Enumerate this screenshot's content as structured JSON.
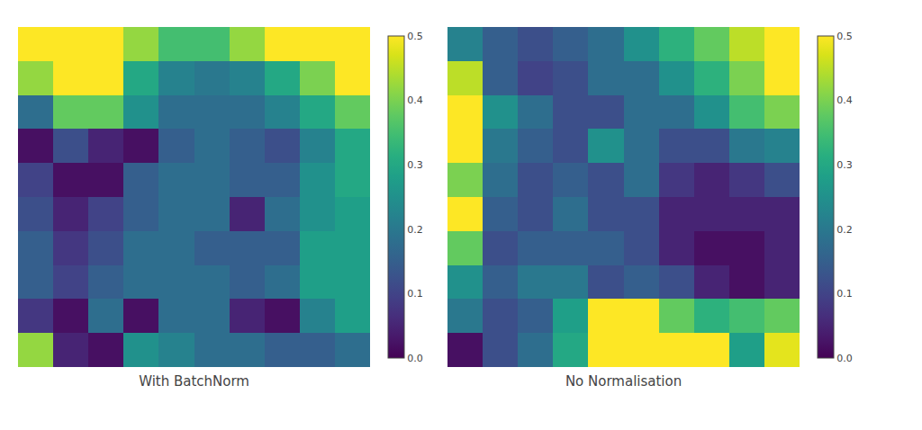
{
  "chart_data": [
    {
      "type": "heatmap",
      "xlabel": "With BatchNorm",
      "color": "Viridis",
      "zlim": [
        0.0,
        0.5
      ],
      "zticks": [
        {
          "value": 0.0,
          "label": "0.0"
        },
        0.1,
        0.2,
        0.3,
        0.4,
        0.5
      ],
      "tick_labels": false,
      "values": [
        [
          0.5,
          0.5,
          0.5,
          0.42,
          0.35,
          0.35,
          0.42,
          0.5,
          0.5,
          0.5
        ],
        [
          0.42,
          0.5,
          0.5,
          0.3,
          0.22,
          0.2,
          0.22,
          0.3,
          0.4,
          0.5
        ],
        [
          0.18,
          0.38,
          0.38,
          0.25,
          0.18,
          0.18,
          0.18,
          0.22,
          0.3,
          0.38
        ],
        [
          0.02,
          0.12,
          0.05,
          0.02,
          0.15,
          0.18,
          0.15,
          0.12,
          0.22,
          0.3
        ],
        [
          0.1,
          0.02,
          0.02,
          0.15,
          0.18,
          0.18,
          0.15,
          0.15,
          0.25,
          0.3
        ],
        [
          0.12,
          0.05,
          0.1,
          0.15,
          0.18,
          0.18,
          0.05,
          0.18,
          0.25,
          0.28
        ],
        [
          0.15,
          0.08,
          0.12,
          0.18,
          0.18,
          0.15,
          0.15,
          0.15,
          0.28,
          0.28
        ],
        [
          0.15,
          0.1,
          0.15,
          0.18,
          0.18,
          0.18,
          0.15,
          0.18,
          0.28,
          0.28
        ],
        [
          0.08,
          0.02,
          0.18,
          0.02,
          0.18,
          0.18,
          0.05,
          0.02,
          0.22,
          0.28
        ],
        [
          0.42,
          0.05,
          0.02,
          0.25,
          0.22,
          0.18,
          0.18,
          0.15,
          0.15,
          0.18
        ]
      ]
    },
    {
      "type": "heatmap",
      "xlabel": "No Normalisation",
      "color": "Viridis",
      "zlim": [
        0.0,
        0.5
      ],
      "zticks": [
        {
          "value": 0.0,
          "label": "0.0"
        },
        0.1,
        0.2,
        0.3,
        0.4,
        0.5
      ],
      "tick_labels": false,
      "values": [
        [
          0.22,
          0.15,
          0.12,
          0.15,
          0.18,
          0.25,
          0.32,
          0.38,
          0.45,
          0.5
        ],
        [
          0.45,
          0.15,
          0.1,
          0.12,
          0.18,
          0.18,
          0.25,
          0.32,
          0.4,
          0.5
        ],
        [
          0.5,
          0.25,
          0.18,
          0.12,
          0.12,
          0.18,
          0.18,
          0.25,
          0.35,
          0.4
        ],
        [
          0.5,
          0.2,
          0.15,
          0.12,
          0.25,
          0.18,
          0.12,
          0.12,
          0.2,
          0.22
        ],
        [
          0.4,
          0.18,
          0.12,
          0.15,
          0.12,
          0.18,
          0.08,
          0.05,
          0.08,
          0.12
        ],
        [
          0.5,
          0.15,
          0.12,
          0.18,
          0.12,
          0.12,
          0.05,
          0.05,
          0.05,
          0.05
        ],
        [
          0.38,
          0.12,
          0.15,
          0.15,
          0.15,
          0.12,
          0.05,
          0.02,
          0.02,
          0.05
        ],
        [
          0.25,
          0.15,
          0.2,
          0.2,
          0.12,
          0.15,
          0.12,
          0.05,
          0.02,
          0.05
        ],
        [
          0.2,
          0.12,
          0.15,
          0.28,
          0.5,
          0.5,
          0.38,
          0.32,
          0.35,
          0.38
        ],
        [
          0.02,
          0.12,
          0.18,
          0.3,
          0.5,
          0.5,
          0.5,
          0.5,
          0.28,
          0.48
        ]
      ]
    }
  ]
}
